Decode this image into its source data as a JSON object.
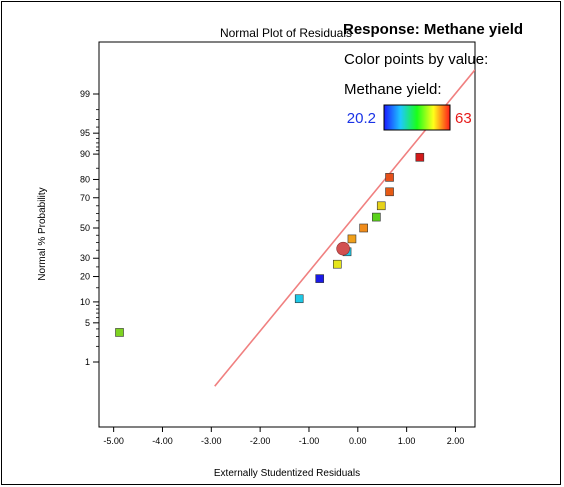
{
  "chart_data": {
    "type": "scatter",
    "title": "Normal Plot of Residuals",
    "xlabel": "Externally Studentized Residuals",
    "ylabel": "Normal % Probability",
    "xlim": [
      -5.3,
      2.4
    ],
    "x_ticks": [
      "-5.00",
      "-4.00",
      "-3.00",
      "-2.00",
      "-1.00",
      "0.00",
      "1.00",
      "2.00"
    ],
    "x_tick_values": [
      -5,
      -4,
      -3,
      -2,
      -1,
      0,
      1,
      2
    ],
    "y_scale": "normal-probability",
    "y_ticks": [
      "1",
      "5",
      "10",
      "20",
      "30",
      "50",
      "70",
      "80",
      "90",
      "95",
      "99"
    ],
    "y_tick_values": [
      1,
      5,
      10,
      20,
      30,
      50,
      70,
      80,
      90,
      95,
      99
    ],
    "y_minor_ticks": [
      2,
      3,
      4,
      6,
      7,
      8,
      9,
      15,
      25,
      35,
      40,
      45,
      55,
      60,
      65,
      75,
      85,
      91,
      92,
      93,
      94,
      96,
      97,
      98
    ],
    "reference_line": {
      "color": "#f08080",
      "from": [
        -2.93,
        0.3
      ],
      "to": [
        2.4,
        99.7
      ]
    },
    "points": [
      {
        "x": -4.88,
        "y": 3.5,
        "color": "#7ed321"
      },
      {
        "x": -1.2,
        "y": 11.0,
        "color": "#1ec8e6"
      },
      {
        "x": -0.78,
        "y": 19.0,
        "color": "#1a1ae6"
      },
      {
        "x": -0.42,
        "y": 26.5,
        "color": "#e6e61a"
      },
      {
        "x": -0.22,
        "y": 34.0,
        "color": "#1ec8e6"
      },
      {
        "x": -0.12,
        "y": 42.5,
        "color": "#f0a01a"
      },
      {
        "x": 0.12,
        "y": 50.0,
        "color": "#f08c1a"
      },
      {
        "x": 0.38,
        "y": 57.5,
        "color": "#5ad21a"
      },
      {
        "x": 0.48,
        "y": 65.0,
        "color": "#e6d21a"
      },
      {
        "x": 0.65,
        "y": 73.5,
        "color": "#e65a14"
      },
      {
        "x": 0.65,
        "y": 81.0,
        "color": "#e6501a"
      },
      {
        "x": 1.27,
        "y": 89.0,
        "color": "#d21a1a"
      }
    ],
    "highlight": {
      "x": -0.3,
      "y": 36.0,
      "color": "#d25050"
    },
    "legend": {
      "title": "Response: Methane yield",
      "line1": "Color points by value:",
      "line2": "Methane yield:",
      "min_label": "20.2",
      "max_label": "63",
      "gradient": [
        "#1a1aff",
        "#1ec8ff",
        "#1aff1a",
        "#ffff1a",
        "#ff1a1a"
      ]
    }
  }
}
